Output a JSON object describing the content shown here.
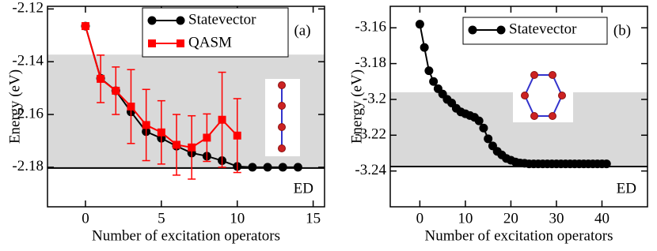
{
  "chart_data": [
    {
      "type": "line",
      "panel_label": "(a)",
      "x_label": "Number of excitation operators",
      "y_label": "Energy (eV)",
      "x": [
        0,
        1,
        2,
        3,
        4,
        5,
        6,
        7,
        8,
        9,
        10,
        11,
        12,
        13,
        14
      ],
      "series": [
        {
          "name": "Statevector",
          "color": "#000000",
          "marker": "circle",
          "values": [
            -2.1265,
            -2.1463,
            -2.151,
            -2.159,
            -2.1665,
            -2.169,
            -2.172,
            -2.1746,
            -2.1758,
            -2.1775,
            -2.1797,
            -2.18,
            -2.18,
            -2.18,
            -2.18
          ]
        },
        {
          "name": "QASM",
          "color": "#ff0000",
          "marker": "square",
          "values": [
            -2.1265,
            -2.1465,
            -2.151,
            -2.157,
            -2.164,
            -2.1668,
            -2.1715,
            -2.1725,
            -2.1688,
            -2.162,
            -2.168,
            null,
            null,
            null,
            null
          ],
          "errors": [
            0,
            0.009,
            0.009,
            0.014,
            0.0135,
            0.012,
            0.0115,
            0.012,
            0.009,
            0.018,
            0.014,
            null,
            null,
            null,
            null
          ]
        }
      ],
      "reference": {
        "label": "ED",
        "value": -2.1803
      },
      "shaded_band": [
        -2.1803,
        -2.1373
      ],
      "band_color": "#d9d9d9",
      "xlim": [
        -2.5,
        15.75
      ],
      "ylim": [
        -2.195,
        -2.119
      ],
      "xticks": [
        0,
        5,
        10,
        15
      ],
      "yticks": [
        -2.18,
        -2.16,
        -2.14,
        -2.12
      ]
    },
    {
      "type": "line",
      "panel_label": "(b)",
      "x_label": "Number of excitation operators",
      "y_label": "Energy (eV)",
      "x": [
        0,
        1,
        2,
        3,
        4,
        5,
        6,
        7,
        8,
        9,
        10,
        11,
        12,
        13,
        14,
        15,
        16,
        17,
        18,
        19,
        20,
        21,
        22,
        23,
        24,
        25,
        26,
        27,
        28,
        29,
        30,
        31,
        32,
        33,
        34,
        35,
        36,
        37,
        38,
        39,
        40,
        41
      ],
      "series": [
        {
          "name": "Statevector",
          "color": "#000000",
          "marker": "circle",
          "values": [
            -3.158,
            -3.171,
            -3.184,
            -3.19,
            -3.194,
            -3.197,
            -3.2,
            -3.202,
            -3.205,
            -3.207,
            -3.208,
            -3.209,
            -3.21,
            -3.212,
            -3.216,
            -3.222,
            -3.226,
            -3.229,
            -3.231,
            -3.233,
            -3.234,
            -3.235,
            -3.2355,
            -3.2357,
            -3.236,
            -3.236,
            -3.236,
            -3.236,
            -3.236,
            -3.236,
            -3.236,
            -3.236,
            -3.236,
            -3.236,
            -3.236,
            -3.236,
            -3.236,
            -3.236,
            -3.236,
            -3.236,
            -3.236,
            -3.236
          ]
        }
      ],
      "reference": {
        "label": "ED",
        "value": -3.2375
      },
      "shaded_band": [
        -3.2375,
        -3.196
      ],
      "band_color": "#d9d9d9",
      "xlim": [
        -6.5,
        50
      ],
      "ylim": [
        -3.26,
        -3.148
      ],
      "xticks": [
        0,
        10,
        20,
        30,
        40
      ],
      "yticks": [
        -3.24,
        -3.22,
        -3.2,
        -3.18,
        -3.16
      ]
    }
  ]
}
